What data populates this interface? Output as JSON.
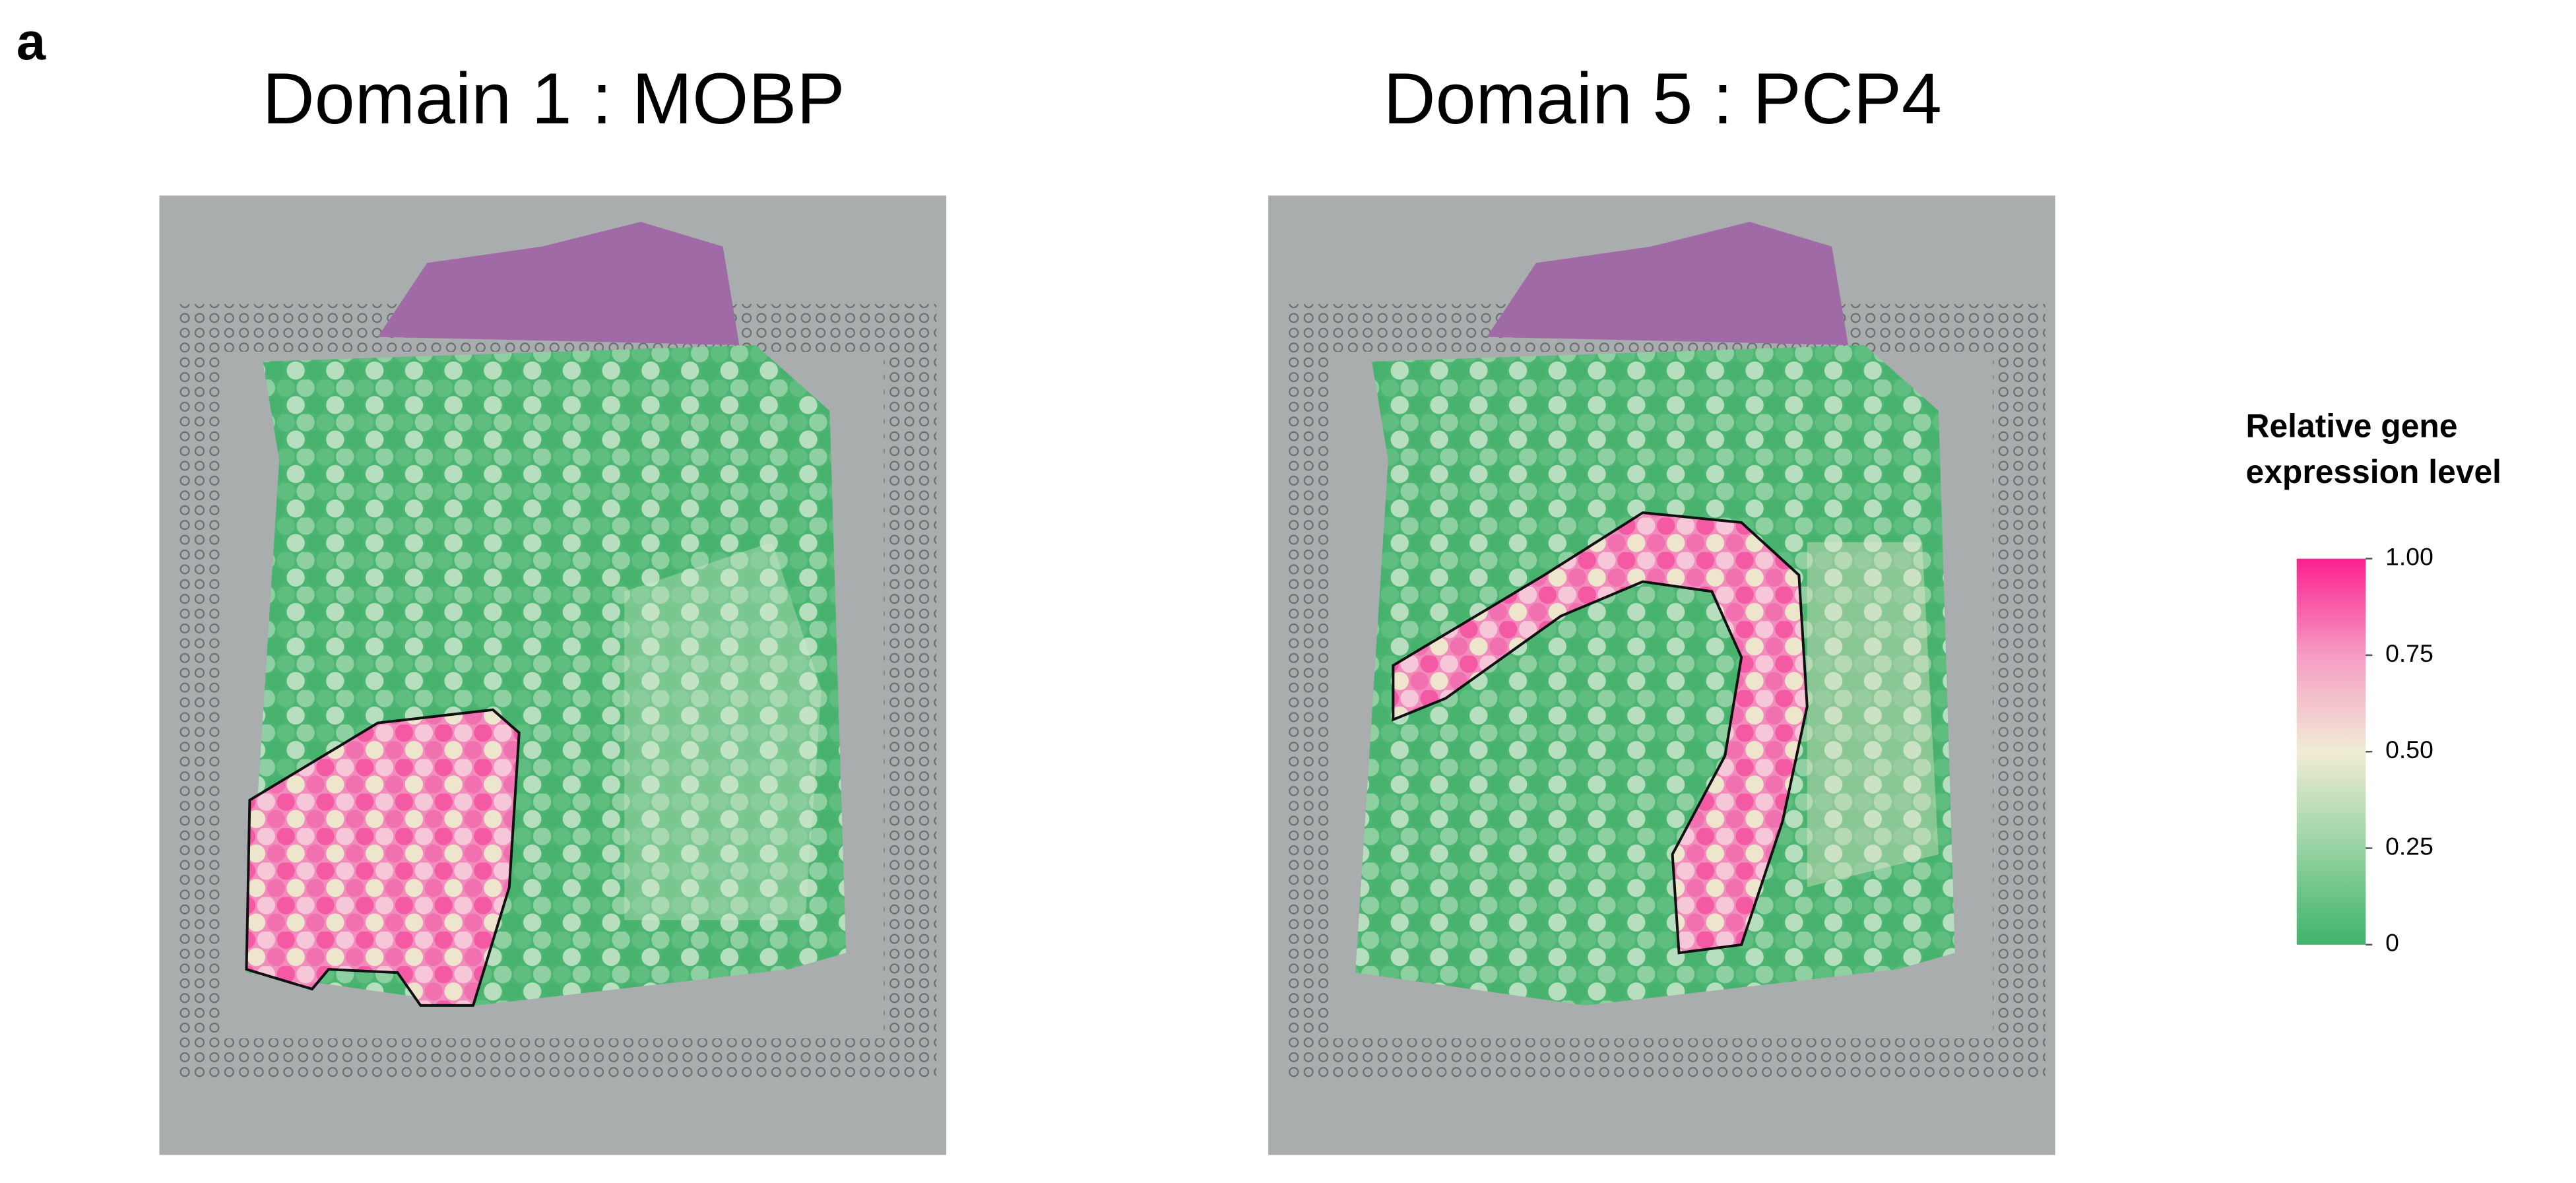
{
  "panel_label": "a",
  "panels": [
    {
      "title": "Domain 1 : MOBP"
    },
    {
      "title": "Domain 5 : PCP4"
    }
  ],
  "legend": {
    "title_lines": [
      "Relative gene",
      "expression level"
    ],
    "range": [
      0,
      1
    ],
    "ticks": [
      {
        "value": 1,
        "label": "1.00"
      },
      0.75,
      {
        "value": 0.5,
        "label": "0.50"
      },
      0.25,
      0
    ]
  }
}
